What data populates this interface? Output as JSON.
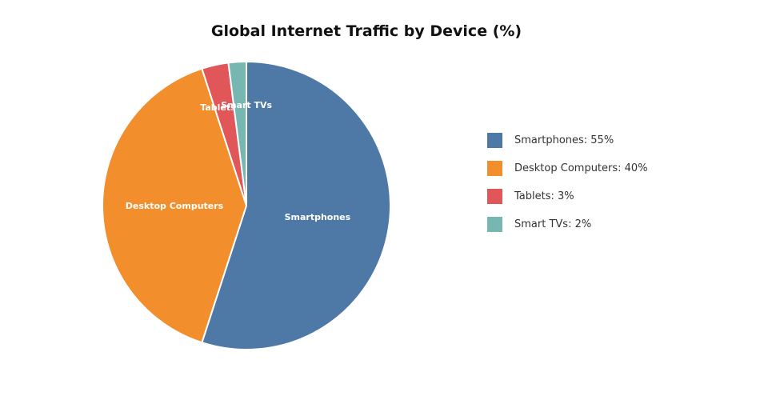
{
  "chart_data": {
    "type": "pie",
    "title": "Global Internet Traffic by Device (%)",
    "categories": [
      "Smartphones",
      "Desktop Computers",
      "Tablets",
      "Smart TVs"
    ],
    "values": [
      55,
      40,
      3,
      2
    ],
    "colors": [
      "#4e79a7",
      "#f28e2b",
      "#e15759",
      "#76b7b2"
    ],
    "slice_labels": [
      "Smartphones",
      "Desktop Computers",
      "Tablets",
      "Smart TVs"
    ],
    "legend_labels": [
      "Smartphones: 55%",
      "Desktop Computers: 40%",
      "Tablets: 3%",
      "Smart TVs: 2%"
    ],
    "legend_position": "right"
  }
}
